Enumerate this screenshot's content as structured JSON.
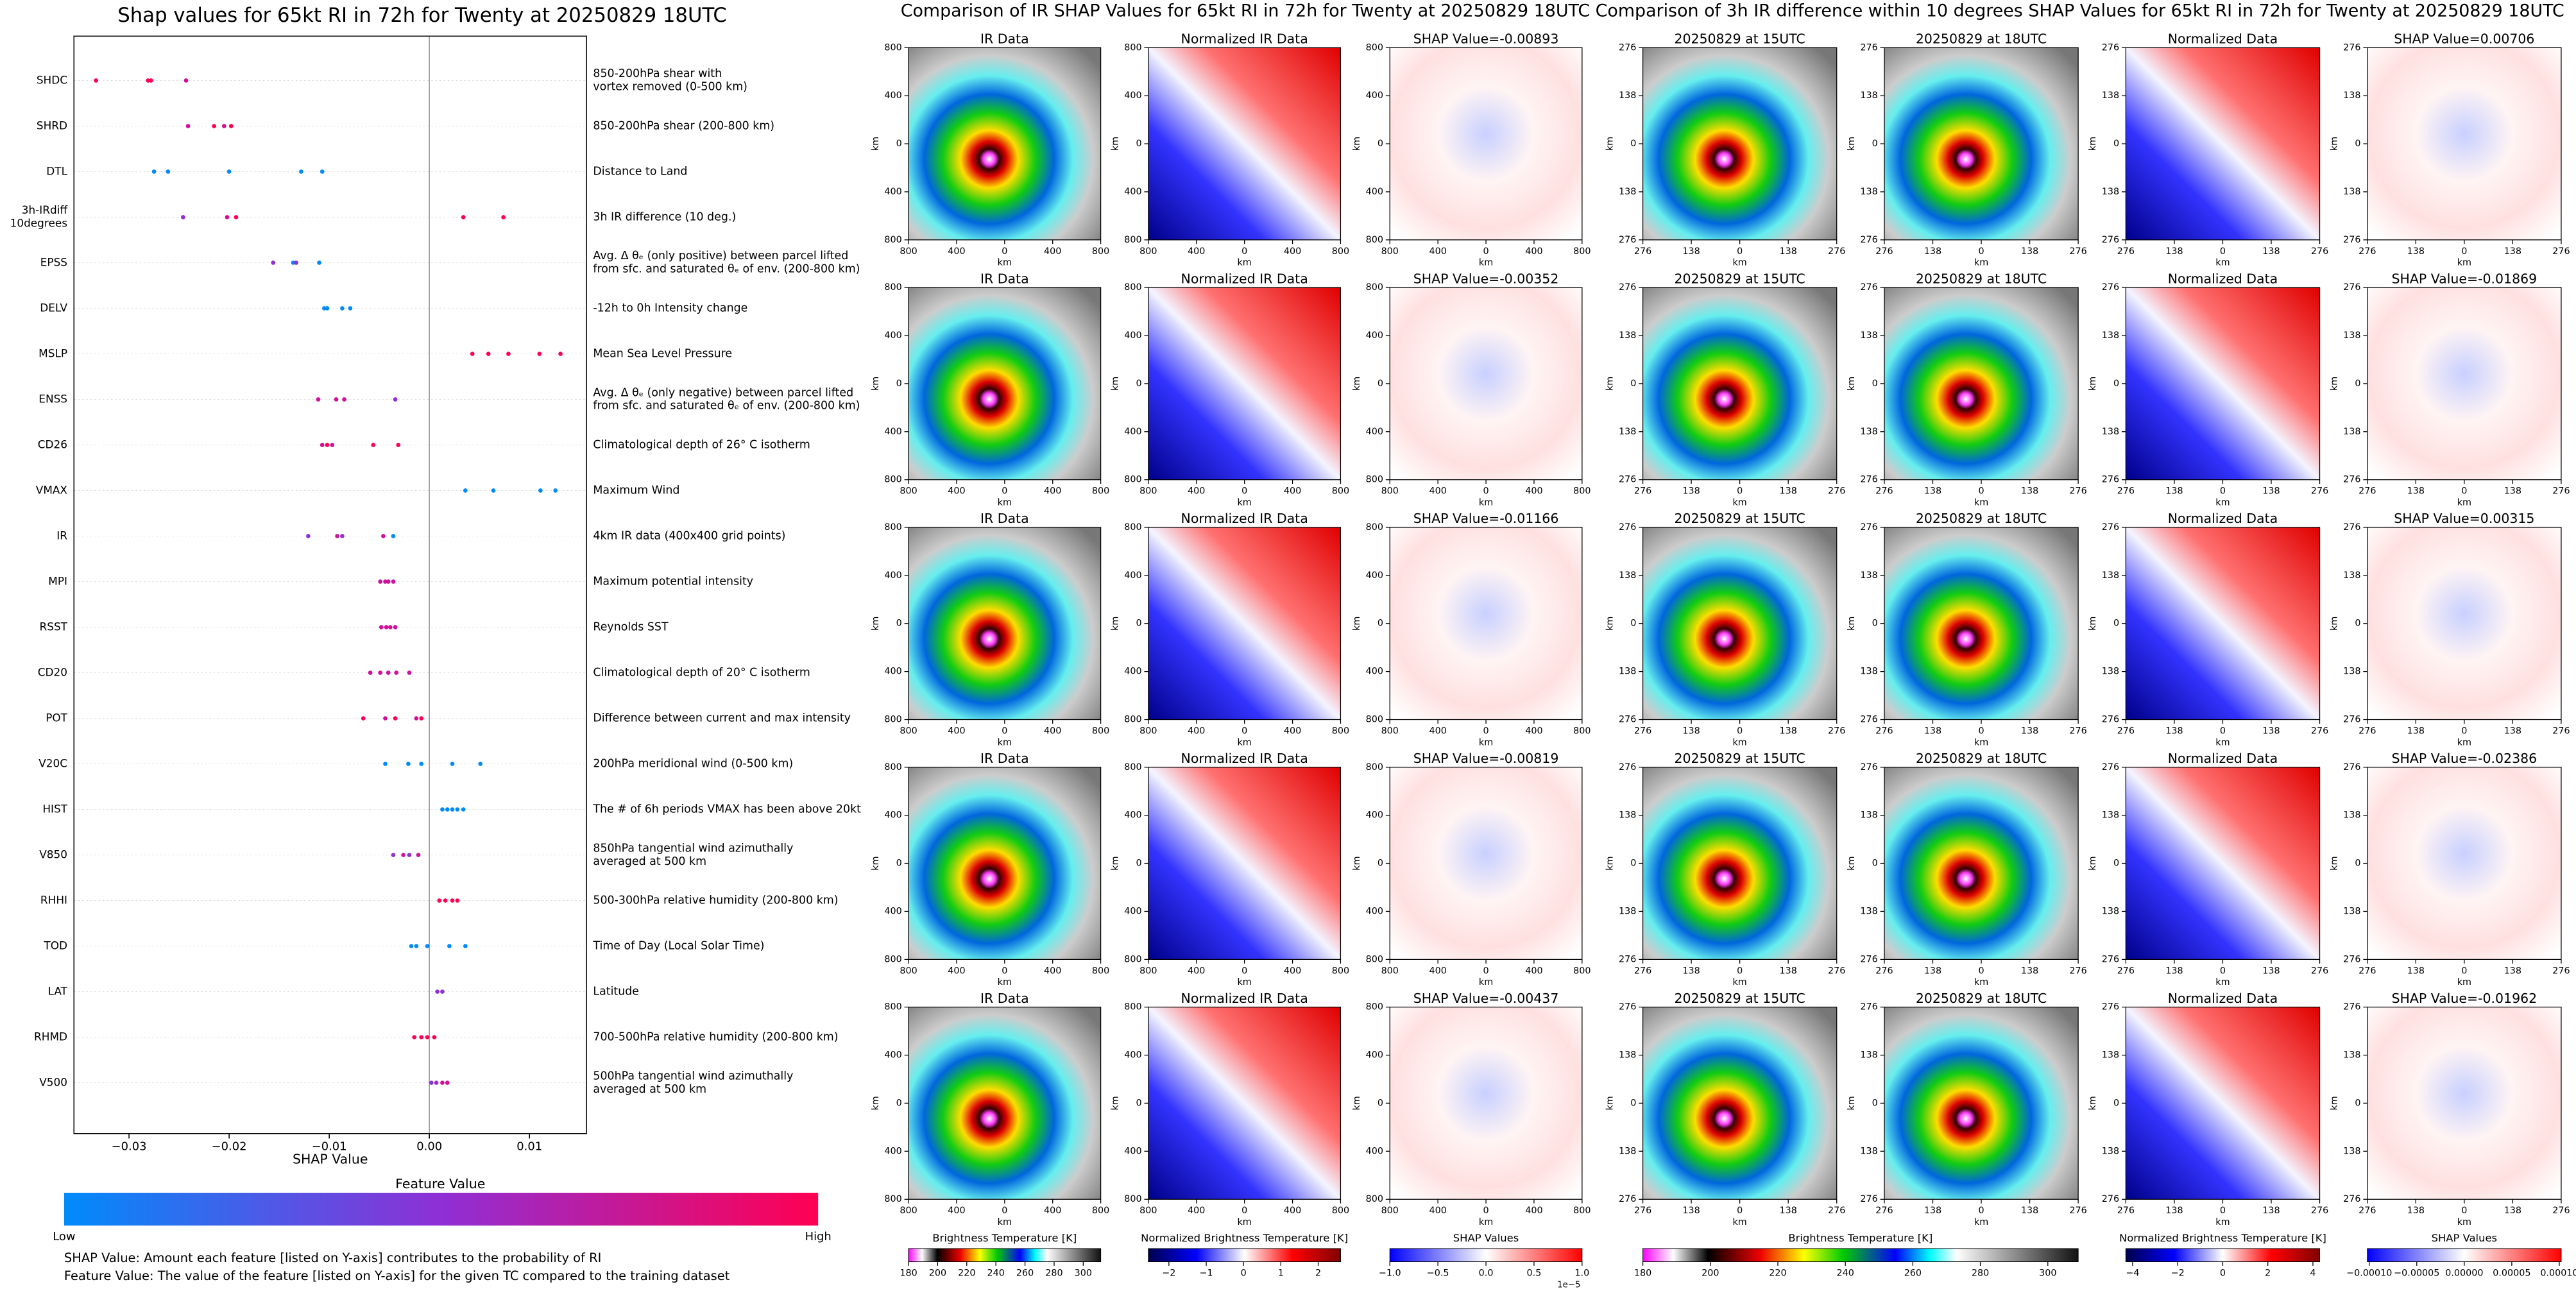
{
  "chart_data": [
    {
      "type": "beeswarm",
      "title": "Shap values for 65kt RI in 72h for Twenty at 20250829 18UTC",
      "xlabel": "SHAP Value",
      "xlim": [
        -0.0355,
        0.0157
      ],
      "xticks": [
        {
          "value": -0.03,
          "label": "−0.03"
        },
        {
          "value": -0.02,
          "label": "−0.02"
        },
        {
          "value": -0.01,
          "label": "−0.01"
        },
        {
          "value": 0,
          "label": "0.00"
        },
        {
          "value": 0.01,
          "label": "0.01"
        }
      ],
      "categories": [
        [
          "SHDC"
        ],
        [
          "SHRD"
        ],
        [
          "DTL"
        ],
        [
          "3h-IRdiff",
          "10degrees"
        ],
        [
          "EPSS"
        ],
        [
          "DELV"
        ],
        [
          "MSLP"
        ],
        [
          "ENSS"
        ],
        [
          "CD26"
        ],
        [
          "VMAX"
        ],
        [
          "IR"
        ],
        [
          "MPI"
        ],
        [
          "RSST"
        ],
        [
          "CD20"
        ],
        [
          "POT"
        ],
        [
          "V20C"
        ],
        [
          "HIST"
        ],
        [
          "V850"
        ],
        [
          "RHHI"
        ],
        [
          "TOD"
        ],
        [
          "LAT"
        ],
        [
          "RHMD"
        ],
        [
          "V500"
        ]
      ],
      "descriptions": [
        [
          "850-200hPa shear with",
          "vortex removed (0-500 km)"
        ],
        [
          "850-200hPa shear (200-800 km)"
        ],
        [
          "Distance to Land"
        ],
        [
          "3h IR difference (10 deg.)"
        ],
        [
          "Avg. Δ θₑ (only positive) between parcel lifted",
          "from sfc. and saturated θₑ of env. (200-800 km)"
        ],
        [
          "-12h to 0h Intensity change"
        ],
        [
          "Mean Sea Level Pressure"
        ],
        [
          "Avg. Δ θₑ (only negative) between parcel lifted",
          "from sfc. and saturated θₑ of env. (200-800 km)"
        ],
        [
          "Climatological depth of 26° C isotherm"
        ],
        [
          "Maximum Wind"
        ],
        [
          "4km IR data (400x400 grid points)"
        ],
        [
          "Maximum potential intensity"
        ],
        [
          "Reynolds SST"
        ],
        [
          "Climatological depth of 20° C isotherm"
        ],
        [
          "Difference between current and max intensity"
        ],
        [
          "200hPa meridional wind (0-500 km)"
        ],
        [
          "The # of 6h periods VMAX has been above 20kt"
        ],
        [
          "850hPa tangential wind azimuthally",
          "averaged at 500 km"
        ],
        [
          "500-300hPa relative humidity (200-800 km)"
        ],
        [
          "Time of Day (Local Solar Time)"
        ],
        [
          "Latitude"
        ],
        [
          "700-500hPa relative humidity (200-800 km)"
        ],
        [
          "500hPa tangential wind azimuthally",
          "averaged at 500 km"
        ]
      ],
      "points": [
        {
          "values": [
            -0.0333,
            -0.0281,
            -0.0278,
            -0.0243
          ],
          "colors": [
            "#ff0052",
            "#ff0052",
            "#ff0052",
            "#d10f9a"
          ]
        },
        {
          "values": [
            -0.0241,
            -0.0215,
            -0.0205,
            -0.0198
          ],
          "colors": [
            "#d10f9a",
            "#ff0052",
            "#d10f9a",
            "#ff0052"
          ]
        },
        {
          "values": [
            -0.0275,
            -0.0261,
            -0.02,
            -0.0128,
            -0.0107
          ],
          "colors": [
            "#008bfb",
            "#008bfb",
            "#008bfb",
            "#008bfb",
            "#008bfb"
          ]
        },
        {
          "values": [
            -0.0246,
            -0.0202,
            -0.0193,
            0.0034,
            0.0074
          ],
          "colors": [
            "#8f2fd5",
            "#d10f9a",
            "#ff0052",
            "#ff0052",
            "#ff0052"
          ]
        },
        {
          "values": [
            -0.0156,
            -0.0136,
            -0.0133,
            -0.011
          ],
          "colors": [
            "#8f2fd5",
            "#008bfb",
            "#8f2fd5",
            "#008bfb"
          ]
        },
        {
          "values": [
            -0.0105,
            -0.0102,
            -0.0087,
            -0.0079
          ],
          "colors": [
            "#008bfb",
            "#008bfb",
            "#008bfb",
            "#008bfb"
          ]
        },
        {
          "values": [
            0.0043,
            0.0059,
            0.0079,
            0.011,
            0.0131
          ],
          "colors": [
            "#ff0052",
            "#ff0052",
            "#ff0052",
            "#ff0052",
            "#ff0052"
          ]
        },
        {
          "values": [
            -0.0111,
            -0.0093,
            -0.0085,
            -0.0034
          ],
          "colors": [
            "#d10f9a",
            "#d10f9a",
            "#d10f9a",
            "#8f2fd5"
          ]
        },
        {
          "values": [
            -0.0107,
            -0.0102,
            -0.0097,
            -0.0056,
            -0.0031
          ],
          "colors": [
            "#d10f9a",
            "#ff0052",
            "#d10f9a",
            "#ff0052",
            "#ff0052"
          ]
        },
        {
          "values": [
            0.0036,
            0.0064,
            0.0111,
            0.0126
          ],
          "colors": [
            "#008bfb",
            "#008bfb",
            "#008bfb",
            "#008bfb"
          ]
        },
        {
          "values": [
            -0.0121,
            -0.0092,
            -0.0087,
            -0.0046,
            -0.0036
          ],
          "colors": [
            "#8f2fd5",
            "#d10f9a",
            "#8f2fd5",
            "#d10f9a",
            "#008bfb"
          ]
        },
        {
          "values": [
            -0.0049,
            -0.0044,
            -0.0041,
            -0.0036
          ],
          "colors": [
            "#d10f9a",
            "#d10f9a",
            "#d10f9a",
            "#d10f9a"
          ]
        },
        {
          "values": [
            -0.0048,
            -0.0043,
            -0.0039,
            -0.0034
          ],
          "colors": [
            "#d10f9a",
            "#d10f9a",
            "#d10f9a",
            "#d10f9a"
          ]
        },
        {
          "values": [
            -0.0059,
            -0.0049,
            -0.0041,
            -0.0033,
            -0.002
          ],
          "colors": [
            "#d10f9a",
            "#d10f9a",
            "#d10f9a",
            "#d10f9a",
            "#d10f9a"
          ]
        },
        {
          "values": [
            -0.0066,
            -0.0044,
            -0.0034,
            -0.0013,
            -0.0008
          ],
          "colors": [
            "#ff0052",
            "#d10f9a",
            "#ff0052",
            "#d10f9a",
            "#ff0052"
          ]
        },
        {
          "values": [
            -0.0044,
            -0.0021,
            -0.0008,
            0.0023,
            0.0051
          ],
          "colors": [
            "#008bfb",
            "#008bfb",
            "#008bfb",
            "#008bfb",
            "#008bfb"
          ]
        },
        {
          "values": [
            0.0013,
            0.0018,
            0.0023,
            0.0028,
            0.0034
          ],
          "colors": [
            "#008bfb",
            "#008bfb",
            "#008bfb",
            "#008bfb",
            "#008bfb"
          ]
        },
        {
          "values": [
            -0.0036,
            -0.0026,
            -0.002,
            -0.0011
          ],
          "colors": [
            "#8f2fd5",
            "#d10f9a",
            "#8f2fd5",
            "#d10f9a"
          ]
        },
        {
          "values": [
            0.001,
            0.0016,
            0.0023,
            0.0028
          ],
          "colors": [
            "#ff0052",
            "#ff0052",
            "#ff0052",
            "#ff0052"
          ]
        },
        {
          "values": [
            -0.0018,
            -0.0013,
            -0.0002,
            0.002,
            0.0036
          ],
          "colors": [
            "#008bfb",
            "#008bfb",
            "#008bfb",
            "#008bfb",
            "#008bfb"
          ]
        },
        {
          "values": [
            0.0008,
            0.0013
          ],
          "colors": [
            "#8f2fd5",
            "#8f2fd5"
          ]
        },
        {
          "values": [
            -0.0015,
            -0.0008,
            -0.0002,
            0.0005
          ],
          "colors": [
            "#ff0052",
            "#ff0052",
            "#ff0052",
            "#ff0052"
          ]
        },
        {
          "values": [
            0.0002,
            0.0007,
            0.0013,
            0.0018
          ],
          "colors": [
            "#8f2fd5",
            "#8f2fd5",
            "#d10f9a",
            "#d10f9a"
          ]
        }
      ],
      "colorbar": {
        "title": "Feature Value",
        "low": "Low",
        "high": "High"
      },
      "notes": [
        "SHAP Value: Amount each feature [listed on Y-axis] contributes to the probability of RI",
        "Feature Value: The value of the feature [listed on Y-axis] for the given TC compared to the training dataset"
      ]
    },
    {
      "type": "image-grid",
      "title": "Comparison of IR SHAP Values for 65kt RI in 72h for Twenty at 20250829 18UTC",
      "xlabel": "km",
      "ylabel": "km",
      "xlim": [
        -800,
        800
      ],
      "ylim": [
        -800,
        800
      ],
      "xticks": [
        {
          "value": -800,
          "label": "800"
        },
        {
          "value": -400,
          "label": "400"
        },
        0,
        400,
        800
      ],
      "yticks": [
        800,
        400,
        0,
        {
          "value": -400,
          "label": "400"
        },
        {
          "value": -800,
          "label": "800"
        }
      ],
      "rows": [
        [
          "IR Data",
          "Normalized IR Data",
          "SHAP Value=-0.00893"
        ],
        [
          "IR Data",
          "Normalized IR Data",
          "SHAP Value=-0.00352"
        ],
        [
          "IR Data",
          "Normalized IR Data",
          "SHAP Value=-0.01166"
        ],
        [
          "IR Data",
          "Normalized IR Data",
          "SHAP Value=-0.00819"
        ],
        [
          "IR Data",
          "Normalized IR Data",
          "SHAP Value=-0.00437"
        ]
      ],
      "colorbars": [
        {
          "label": "Brightness Temperature [K]",
          "lim": [
            180,
            312
          ],
          "ticks": [
            180,
            200,
            220,
            240,
            260,
            280,
            300
          ]
        },
        {
          "label": "Normalized Brightness Temperature [K]",
          "lim": [
            -2.55,
            2.6
          ],
          "ticks": [
            {
              "value": -2,
              "label": "−2"
            },
            {
              "value": -1,
              "label": "−1"
            },
            0,
            1,
            2
          ]
        },
        {
          "label": "SHAP Values",
          "lim": [
            -1,
            1
          ],
          "ticks": [
            {
              "value": -1,
              "label": "−1.0"
            },
            {
              "value": -0.5,
              "label": "−0.5"
            },
            {
              "value": 0,
              "label": "0.0"
            },
            0.5,
            {
              "value": 1,
              "label": "1.0"
            }
          ],
          "offset": "1e−5"
        }
      ]
    },
    {
      "type": "image-grid",
      "title": "Comparison of 3h IR difference within 10 degrees SHAP Values for 65kt RI in 72h for Twenty at 20250829 18UTC",
      "xlabel": "km",
      "ylabel": "km",
      "xlim": [
        -276,
        276
      ],
      "ylim": [
        -276,
        276
      ],
      "xticks": [
        {
          "value": -276,
          "label": "276"
        },
        {
          "value": -138,
          "label": "138"
        },
        0,
        138,
        276
      ],
      "yticks": [
        276,
        138,
        0,
        {
          "value": -138,
          "label": "138"
        },
        {
          "value": -276,
          "label": "276"
        }
      ],
      "rows": [
        [
          "20250829 at 15UTC",
          "20250829 at 18UTC",
          "Normalized Data",
          "SHAP Value=0.00706"
        ],
        [
          "20250829 at 15UTC",
          "20250829 at 18UTC",
          "Normalized Data",
          "SHAP Value=-0.01869"
        ],
        [
          "20250829 at 15UTC",
          "20250829 at 18UTC",
          "Normalized Data",
          "SHAP Value=0.00315"
        ],
        [
          "20250829 at 15UTC",
          "20250829 at 18UTC",
          "Normalized Data",
          "SHAP Value=-0.02386"
        ],
        [
          "20250829 at 15UTC",
          "20250829 at 18UTC",
          "Normalized Data",
          "SHAP Value=-0.01962"
        ]
      ],
      "colorbars": [
        {
          "label": "Brightness Temperature [K]",
          "lim": [
            180,
            309
          ],
          "ticks": [
            180,
            200,
            220,
            240,
            260,
            280,
            300
          ]
        },
        {
          "label": "Normalized Brightness Temperature [K]",
          "lim": [
            -4.3,
            4.3
          ],
          "ticks": [
            {
              "value": -4,
              "label": "−4"
            },
            {
              "value": -2,
              "label": "−2"
            },
            0,
            2,
            4
          ]
        },
        {
          "label": "SHAP Values",
          "lim": [
            -0.000102,
            0.000102
          ],
          "ticks": [
            {
              "value": -0.0001,
              "label": "−0.00010"
            },
            {
              "value": -5e-05,
              "label": "−0.00005"
            },
            {
              "value": 0,
              "label": "0.00000"
            },
            {
              "value": 5e-05,
              "label": "0.00005"
            },
            {
              "value": 0.0001,
              "label": "0.00010"
            }
          ]
        }
      ]
    }
  ]
}
